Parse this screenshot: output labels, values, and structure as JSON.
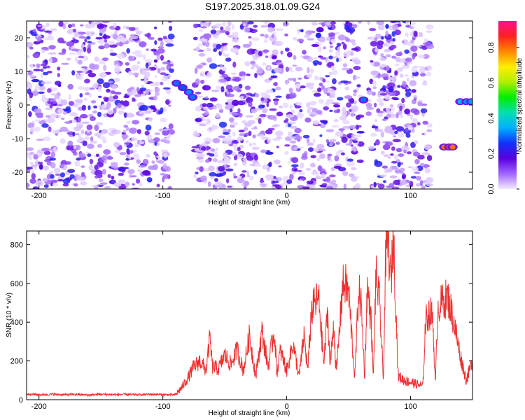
{
  "title": "S197.2025.318.01.09.G24",
  "chart_data": [
    {
      "type": "heatmap",
      "name": "spectrogram",
      "xlabel": "Height of straight line (km)",
      "ylabel": "Frequency (Hz)",
      "xlim": [
        -210,
        150
      ],
      "ylim": [
        -25,
        25
      ],
      "xticks": [
        -200,
        -100,
        0,
        100
      ],
      "xtick_labels": [
        "-200",
        "-100",
        "0",
        "100"
      ],
      "yticks": [
        -20,
        -10,
        0,
        10,
        20
      ],
      "ytick_labels": [
        "-20",
        "-10",
        "0",
        "10",
        "20"
      ],
      "colorbar": {
        "label": "Normalized spectral amplitude",
        "range": [
          0,
          0.95
        ],
        "ticks": [
          0.0,
          0.2,
          0.4,
          0.6,
          0.8
        ],
        "tick_labels": [
          "0.0",
          "0.2",
          "0.4",
          "0.6",
          "0.8"
        ],
        "colors": [
          "#f3eaff",
          "#a066ff",
          "#5a00e0",
          "#1030ff",
          "#00b0ff",
          "#00e0b0",
          "#00ee00",
          "#b0ee00",
          "#ffee00",
          "#ff8800",
          "#ff2020",
          "#ff1090"
        ]
      },
      "gaps_km": [
        [
          -93,
          -74
        ],
        [
          -4,
          -1
        ],
        [
          60,
          66
        ],
        [
          116,
          124
        ],
        [
          124,
          150
        ]
      ],
      "features": [
        {
          "x": -89,
          "y": 6.5,
          "amp": 0.3
        },
        {
          "x": -84,
          "y": 5.2,
          "amp": 0.28
        },
        {
          "x": -79,
          "y": 3.8,
          "amp": 0.32
        },
        {
          "x": -76,
          "y": 2.3,
          "amp": 0.3
        },
        {
          "x": 62,
          "y": 1.5,
          "amp": 0.3
        },
        {
          "x": 127,
          "y": -12.5,
          "amp": 0.8
        },
        {
          "x": 131,
          "y": -12.5,
          "amp": 0.85
        },
        {
          "x": 134,
          "y": -12.5,
          "amp": 0.8
        },
        {
          "x": 140,
          "y": 1.0,
          "amp": 0.35
        },
        {
          "x": 145,
          "y": 1.0,
          "amp": 0.32
        },
        {
          "x": 149,
          "y": 1.0,
          "amp": 0.33
        }
      ]
    },
    {
      "type": "line",
      "name": "snr",
      "xlabel": "Height of straight line (km)",
      "ylabel": "SNR (10 * v/v)",
      "xlim": [
        -210,
        150
      ],
      "ylim": [
        0,
        870
      ],
      "xticks": [
        -200,
        -100,
        0,
        100
      ],
      "xtick_labels": [
        "-200",
        "-100",
        "0",
        "100"
      ],
      "yticks": [
        0,
        200,
        400,
        600,
        800
      ],
      "ytick_labels": [
        "0",
        "200",
        "400",
        "600",
        "800"
      ],
      "color": "#ee3030",
      "series": [
        {
          "name": "SNR",
          "x": [
            -210,
            -200,
            -190,
            -180,
            -170,
            -160,
            -150,
            -140,
            -130,
            -120,
            -110,
            -100,
            -90,
            -85,
            -80,
            -75,
            -70,
            -65,
            -62,
            -60,
            -55,
            -50,
            -45,
            -40,
            -35,
            -30,
            -25,
            -20,
            -15,
            -10,
            -8,
            -5,
            0,
            5,
            10,
            14,
            17,
            20,
            25,
            26,
            30,
            33,
            35,
            38,
            40,
            45,
            47,
            50,
            55,
            58,
            60,
            63,
            65,
            68,
            70,
            72,
            75,
            78,
            80,
            82,
            84,
            85,
            86,
            88,
            90,
            95,
            100,
            105,
            110,
            112,
            115,
            118,
            120,
            122,
            125,
            130,
            135,
            140,
            145,
            150
          ],
          "y": [
            30,
            25,
            28,
            26,
            27,
            24,
            28,
            26,
            27,
            25,
            28,
            26,
            25,
            60,
            110,
            170,
            200,
            150,
            320,
            170,
            160,
            230,
            180,
            260,
            150,
            330,
            120,
            350,
            170,
            360,
            140,
            250,
            150,
            290,
            120,
            330,
            150,
            460,
            520,
            510,
            180,
            460,
            170,
            400,
            130,
            580,
            600,
            550,
            110,
            560,
            500,
            120,
            580,
            420,
            110,
            640,
            500,
            100,
            760,
            820,
            600,
            700,
            870,
            500,
            120,
            100,
            90,
            80,
            70,
            400,
            450,
            420,
            70,
            470,
            500,
            530,
            400,
            230,
            100,
            200
          ]
        }
      ]
    }
  ]
}
